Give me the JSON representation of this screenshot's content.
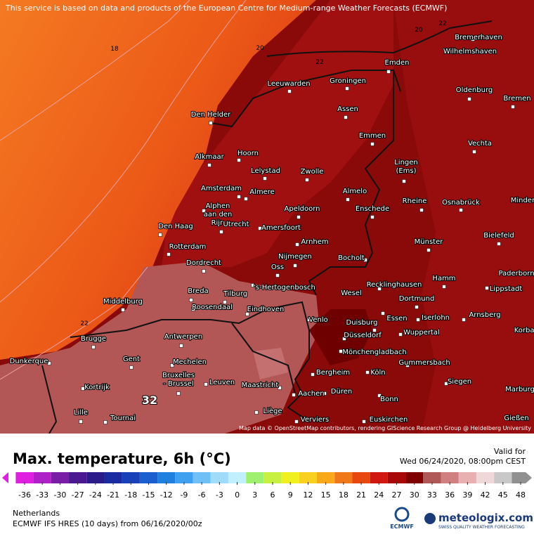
{
  "header": {
    "notice": "This service is based on data and products of the European Centre for Medium-range Weather Forecasts (ECMWF)"
  },
  "map": {
    "cities": [
      {
        "label": "Bremerhaven"
      },
      {
        "label": "Wilhelmshaven"
      },
      {
        "label": "Emden"
      },
      {
        "label": "Groningen"
      },
      {
        "label": "Leeuwarden"
      },
      {
        "label": "Oldenburg"
      },
      {
        "label": "Bremen"
      },
      {
        "label": "Assen"
      },
      {
        "label": "Den Helder"
      },
      {
        "label": "Emmen"
      },
      {
        "label": "Vechta"
      },
      {
        "label": "Hoorn"
      },
      {
        "label": "Alkmaar"
      },
      {
        "label": "Lelystad"
      },
      {
        "label": "Zwolle"
      },
      {
        "lines": [
          "Lingen",
          "(Ems)"
        ]
      },
      {
        "label": "Amsterdam"
      },
      {
        "label": "Almere"
      },
      {
        "label": "Almelo"
      },
      {
        "label": "Rheine"
      },
      {
        "label": "Osnabrück"
      },
      {
        "label": "Minden"
      },
      {
        "lines": [
          "Alphen",
          "aan den",
          "Rijn"
        ]
      },
      {
        "label": "Apeldoorn"
      },
      {
        "label": "Enschede"
      },
      {
        "label": "Den Haag"
      },
      {
        "label": "Utrecht"
      },
      {
        "label": "Amersfoort"
      },
      {
        "label": "Bielefeld"
      },
      {
        "label": "Arnhem"
      },
      {
        "label": "Münster"
      },
      {
        "label": "Rotterdam"
      },
      {
        "label": "Bocholt"
      },
      {
        "label": "Nijmegen"
      },
      {
        "label": "Oss"
      },
      {
        "label": "Dordrecht"
      },
      {
        "label": "Paderborn"
      },
      {
        "label": "Hamm"
      },
      {
        "label": "'s-Hertogenbosch"
      },
      {
        "label": "Recklinghausen"
      },
      {
        "label": "Lippstadt"
      },
      {
        "label": "Breda"
      },
      {
        "label": "Tilburg"
      },
      {
        "label": "Wesel"
      },
      {
        "label": "Middelburg"
      },
      {
        "label": "Dortmund"
      },
      {
        "label": "Roosendaal"
      },
      {
        "label": "Eindhoven"
      },
      {
        "label": "Arnsberg"
      },
      {
        "label": "Venlo"
      },
      {
        "label": "Essen"
      },
      {
        "label": "Iserlohn"
      },
      {
        "label": "Duisburg"
      },
      {
        "label": "Korbach"
      },
      {
        "label": "Wuppertal"
      },
      {
        "label": "Antwerpen"
      },
      {
        "label": "Brugge"
      },
      {
        "label": "Düsseldorf"
      },
      {
        "label": "Mönchengladbach"
      },
      {
        "label": "Gent"
      },
      {
        "label": "Dunkerque"
      },
      {
        "label": "Gummersbach"
      },
      {
        "label": "Mechelen"
      },
      {
        "lines": [
          "Bruxelles",
          "- Brussel"
        ]
      },
      {
        "label": "Bergheim"
      },
      {
        "label": "Köln"
      },
      {
        "label": "Leuven"
      },
      {
        "label": "Maastricht"
      },
      {
        "label": "Siegen"
      },
      {
        "label": "Kortrijk"
      },
      {
        "label": "Düren"
      },
      {
        "label": "Aachen"
      },
      {
        "label": "Marburg"
      },
      {
        "label": "Bonn"
      },
      {
        "label": "Tournai"
      },
      {
        "label": "Lille"
      },
      {
        "label": "Liège"
      },
      {
        "label": "Gießen"
      },
      {
        "label": "Euskirchen"
      },
      {
        "label": "Verviers"
      }
    ],
    "contour_labels": [
      18,
      20,
      22,
      20,
      22,
      22,
      32
    ],
    "attribution": "Map data © OpenStreetMap contributors, rendering GIScience Research Group @ Heidelberg University"
  },
  "legend": {
    "title": "Max. temperature, 6h (°C)",
    "valid_label": "Valid for",
    "valid_time": "Wed 06/24/2020, 08:00pm CEST",
    "ticks": [
      -36,
      -33,
      -30,
      -27,
      -24,
      -21,
      -18,
      -15,
      -12,
      -9,
      -6,
      -3,
      0,
      3,
      6,
      9,
      12,
      15,
      18,
      21,
      24,
      27,
      30,
      33,
      36,
      39,
      42,
      45,
      48
    ],
    "colors": [
      "#e020e0",
      "#b020c8",
      "#7a1ea8",
      "#4a1890",
      "#2a1a8a",
      "#1a2aa0",
      "#1840b8",
      "#1a5ed0",
      "#2080e0",
      "#40a0f0",
      "#70c0f8",
      "#a0dcfa",
      "#c0f0ff",
      "#a0f070",
      "#c8f040",
      "#f0f020",
      "#f8d020",
      "#f8a818",
      "#f07818",
      "#e84810",
      "#d01810",
      "#a80808",
      "#800000",
      "#b05858",
      "#d08080",
      "#e8b0b0",
      "#f0d8d8",
      "#c8c8c8",
      "#909090"
    ]
  },
  "footer": {
    "region": "Netherlands",
    "model": "ECMWF IFS HRES (10 days) from 06/16/2020/00z",
    "brand": "meteologix.com",
    "tagline": "SWISS QUALITY WEATHER FORECASTING",
    "ecmwf": "ECMWF"
  }
}
